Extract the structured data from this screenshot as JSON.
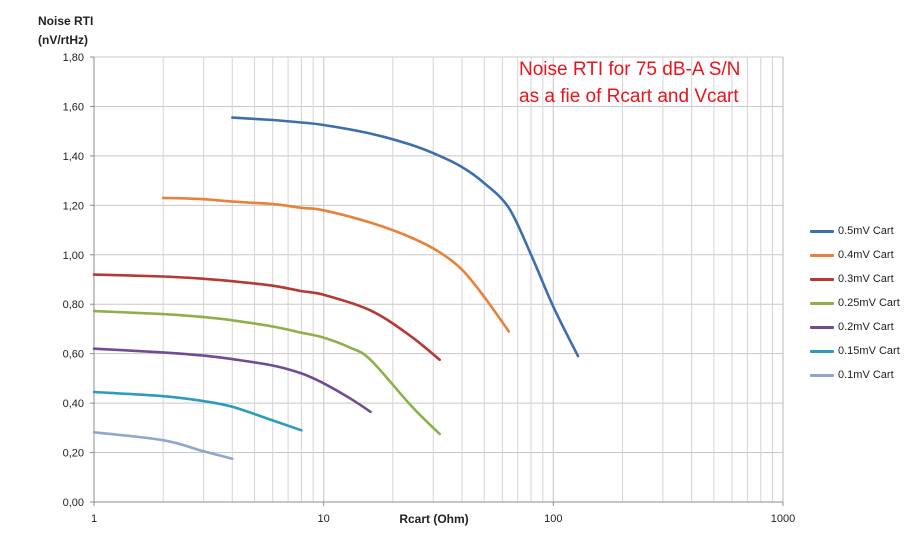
{
  "chart_data": {
    "type": "line",
    "title_lines": [
      "Noise RTI for 75 dB-A S/N",
      "as a fie of Rcart and Vcart"
    ],
    "ylabel_lines": [
      "Noise RTI",
      "(nV/rtHz)"
    ],
    "xlabel": "Rcart (Ohm)",
    "x_scale": "log",
    "xlim": [
      1,
      1000
    ],
    "ylim": [
      0,
      1.8
    ],
    "y_ticks": [
      0,
      0.2,
      0.4,
      0.6,
      0.8,
      1.0,
      1.2,
      1.4,
      1.6,
      1.8
    ],
    "y_tick_labels": [
      "0,00",
      "0,20",
      "0,40",
      "0,60",
      "0,80",
      "1,00",
      "1,20",
      "1,40",
      "1,60",
      "1,80"
    ],
    "x_ticks": [
      1,
      10,
      100,
      1000
    ],
    "x_tick_labels": [
      "1",
      "10",
      "100",
      "1000"
    ],
    "grid": true,
    "legend_position": "right",
    "series": [
      {
        "name": "0.5mV Cart",
        "color": "#3d6fac",
        "points": [
          [
            4,
            1.555
          ],
          [
            6,
            1.545
          ],
          [
            8,
            1.535
          ],
          [
            10,
            1.525
          ],
          [
            16,
            1.49
          ],
          [
            24,
            1.445
          ],
          [
            32,
            1.4
          ],
          [
            40,
            1.355
          ],
          [
            50,
            1.29
          ],
          [
            64,
            1.19
          ],
          [
            80,
            1.0
          ],
          [
            100,
            0.79
          ],
          [
            128,
            0.59
          ]
        ]
      },
      {
        "name": "0.4mV Cart",
        "color": "#e8823a",
        "points": [
          [
            2,
            1.23
          ],
          [
            3,
            1.225
          ],
          [
            4,
            1.215
          ],
          [
            6,
            1.205
          ],
          [
            8,
            1.19
          ],
          [
            10,
            1.18
          ],
          [
            16,
            1.13
          ],
          [
            24,
            1.07
          ],
          [
            32,
            1.01
          ],
          [
            40,
            0.94
          ],
          [
            50,
            0.83
          ],
          [
            64,
            0.69
          ]
        ]
      },
      {
        "name": "0.3mV Cart",
        "color": "#b53a35",
        "points": [
          [
            1,
            0.92
          ],
          [
            2,
            0.912
          ],
          [
            3,
            0.903
          ],
          [
            4,
            0.893
          ],
          [
            6,
            0.875
          ],
          [
            8,
            0.853
          ],
          [
            10,
            0.838
          ],
          [
            16,
            0.775
          ],
          [
            24,
            0.67
          ],
          [
            32,
            0.575
          ]
        ]
      },
      {
        "name": "0.25mV Cart",
        "color": "#8eb04a",
        "points": [
          [
            1,
            0.772
          ],
          [
            2,
            0.76
          ],
          [
            3,
            0.748
          ],
          [
            4,
            0.735
          ],
          [
            6,
            0.71
          ],
          [
            8,
            0.685
          ],
          [
            10,
            0.665
          ],
          [
            13,
            0.625
          ],
          [
            16,
            0.575
          ],
          [
            24,
            0.39
          ],
          [
            32,
            0.275
          ]
        ]
      },
      {
        "name": "0.2mV Cart",
        "color": "#704c92",
        "points": [
          [
            1,
            0.62
          ],
          [
            2,
            0.605
          ],
          [
            3,
            0.592
          ],
          [
            4,
            0.578
          ],
          [
            6,
            0.552
          ],
          [
            8,
            0.52
          ],
          [
            10,
            0.48
          ],
          [
            13,
            0.42
          ],
          [
            16,
            0.365
          ]
        ]
      },
      {
        "name": "0.15mV Cart",
        "color": "#2c9bbf",
        "points": [
          [
            1,
            0.445
          ],
          [
            2,
            0.428
          ],
          [
            3,
            0.408
          ],
          [
            4,
            0.385
          ],
          [
            6,
            0.33
          ],
          [
            8,
            0.29
          ]
        ]
      },
      {
        "name": "0.1mV Cart",
        "color": "#8fa6cf",
        "points": [
          [
            1,
            0.282
          ],
          [
            2,
            0.25
          ],
          [
            3,
            0.205
          ],
          [
            4,
            0.175
          ]
        ]
      }
    ]
  }
}
